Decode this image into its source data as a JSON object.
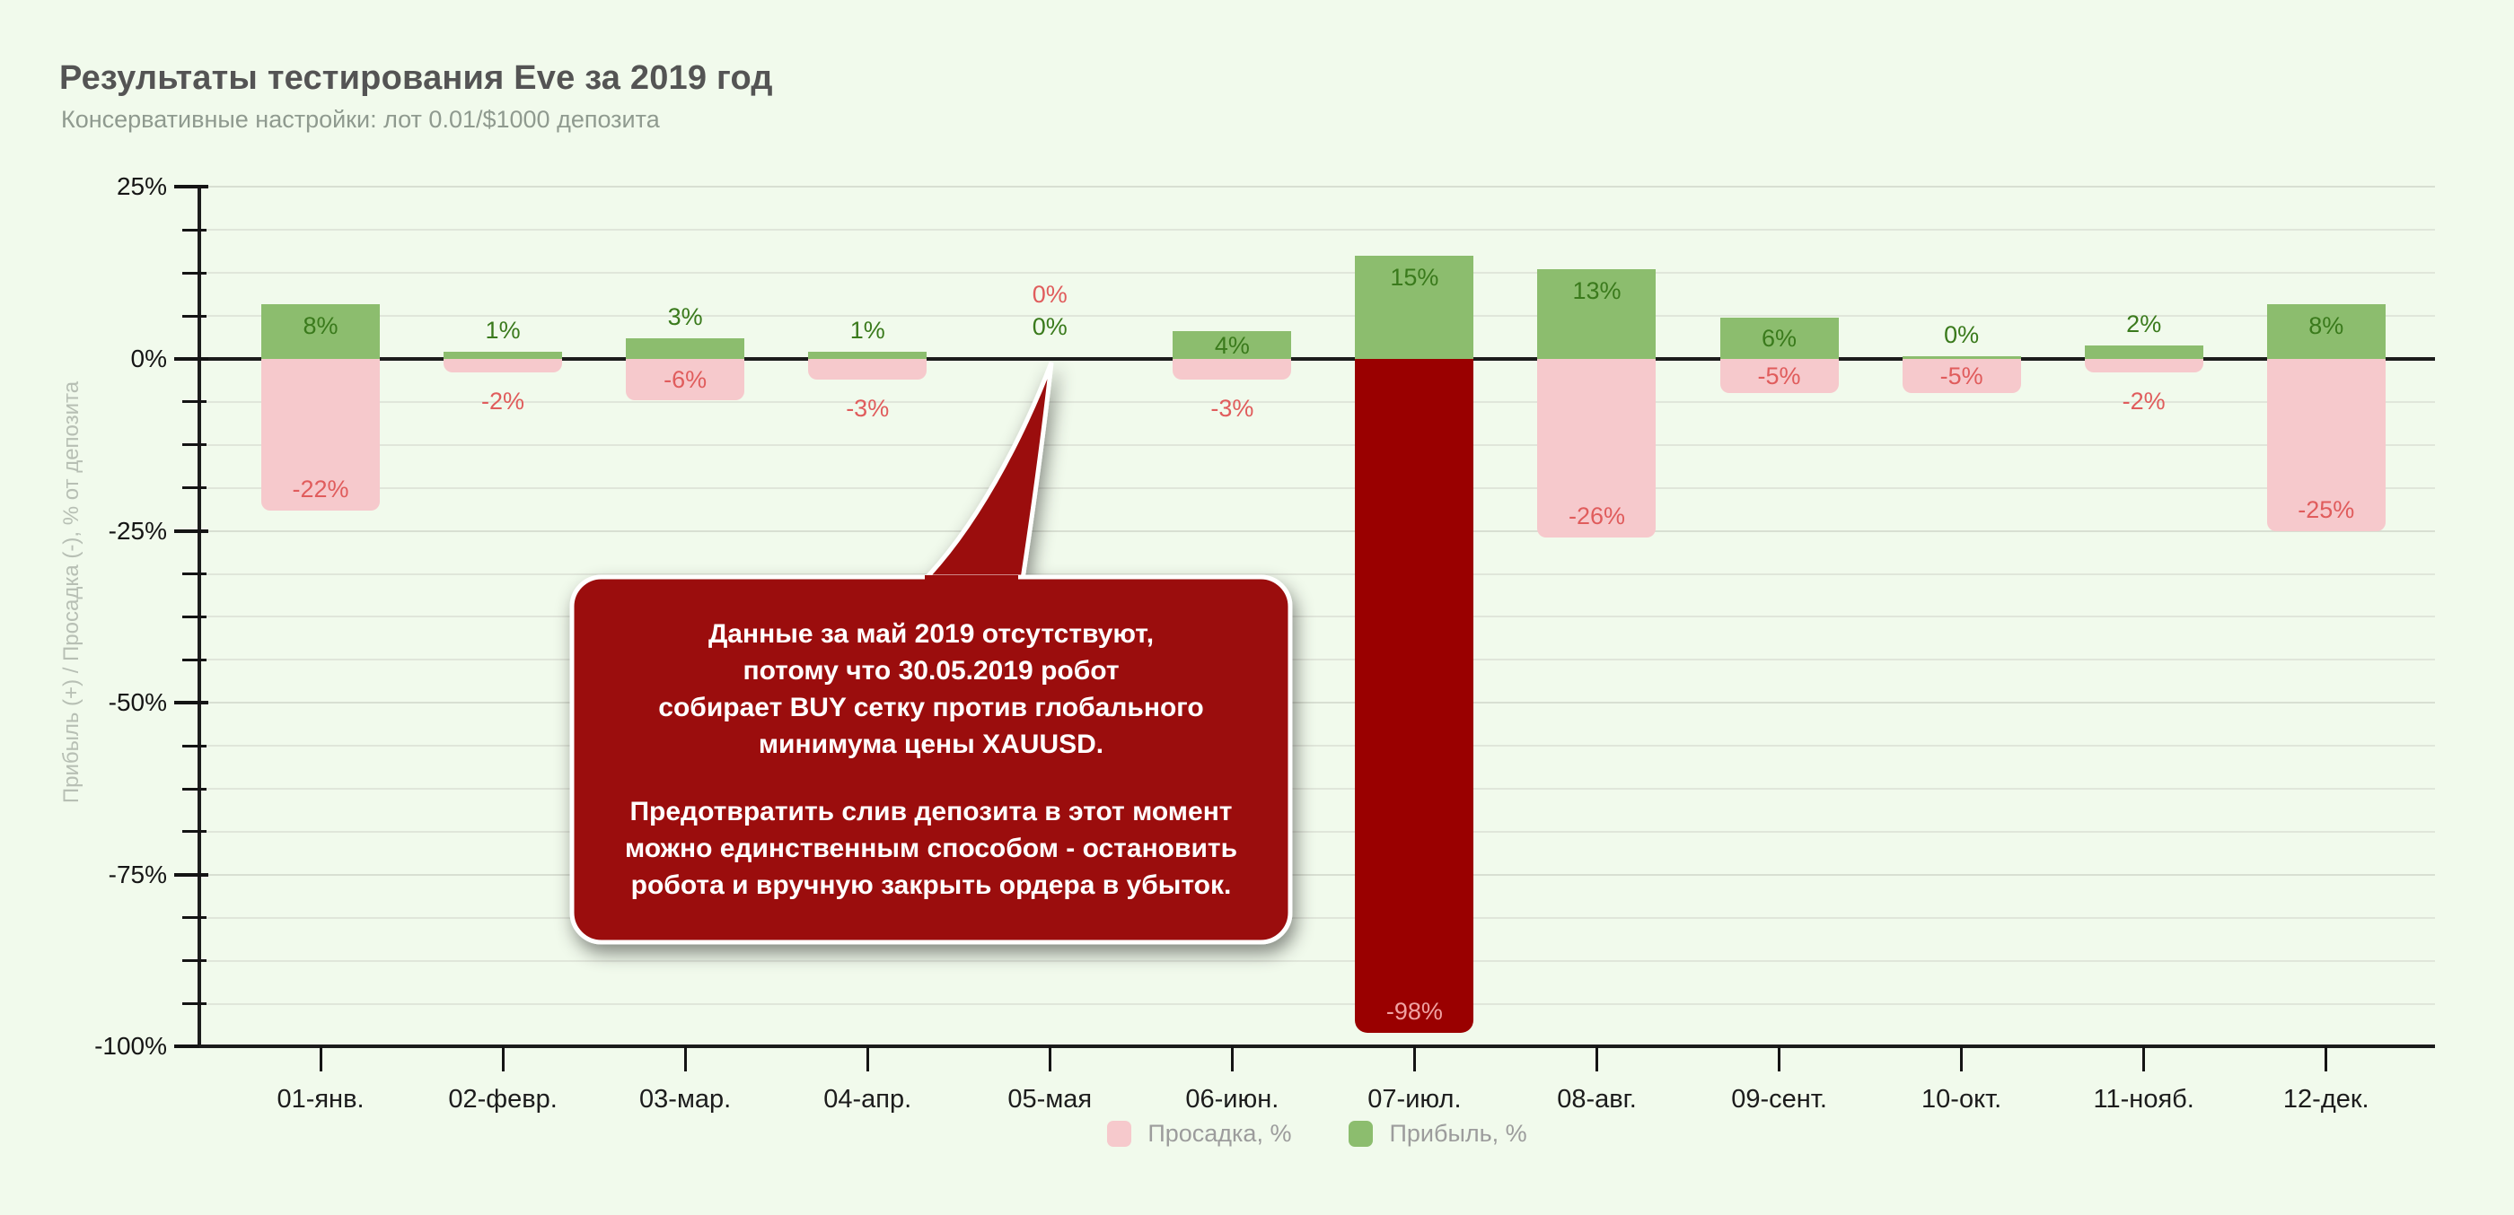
{
  "header": {
    "title": "Результаты тестирования Eve за 2019 год",
    "subtitle": "Консервативные настройки: лот 0.01/$1000 депозита"
  },
  "chart_data": {
    "type": "bar",
    "title": "Результаты тестирования Eve за 2019 год",
    "subtitle": "Консервативные настройки: лот 0.01/$1000 депозита",
    "categories": [
      "01-янв.",
      "02-февр.",
      "03-мар.",
      "04-апр.",
      "05-мая",
      "06-июн.",
      "07-июл.",
      "08-авг.",
      "09-сент.",
      "10-окт.",
      "11-нояб.",
      "12-дек."
    ],
    "series": [
      {
        "name": "Прибыль, %",
        "values": [
          8,
          1,
          3,
          1,
          0,
          4,
          15,
          13,
          6,
          0,
          2,
          8
        ]
      },
      {
        "name": "Просадка, %",
        "values": [
          -22,
          -2,
          -6,
          -3,
          0,
          -3,
          -98,
          -26,
          -5,
          -5,
          -2,
          -25
        ]
      }
    ],
    "xlabel": "",
    "ylabel": "Прибыль (+) / Просадка (-), % от депозита",
    "ylim": [
      -100,
      25
    ],
    "ytick_major_step": 25,
    "ytick_minor_step": 6.25,
    "grid": true,
    "legend_position": "bottom"
  },
  "yticks": [
    {
      "value": 25,
      "label": "25%"
    },
    {
      "value": 0,
      "label": "0%"
    },
    {
      "value": -25,
      "label": "-25%"
    },
    {
      "value": -50,
      "label": "-50%"
    },
    {
      "value": -75,
      "label": "-75%"
    },
    {
      "value": -100,
      "label": "-100%"
    }
  ],
  "months": [
    {
      "label": "01-янв.",
      "profit": 8,
      "drawdown": -22,
      "profit_label": "8%",
      "drawdown_label": "-22%",
      "profit_label_pos": "inside",
      "drawdown_label_pos": "inside",
      "drawdown_style": "pink",
      "zero_sliver": false
    },
    {
      "label": "02-февр.",
      "profit": 1,
      "drawdown": -2,
      "profit_label": "1%",
      "drawdown_label": "-2%",
      "profit_label_pos": "above",
      "drawdown_label_pos": "below",
      "drawdown_style": "pink",
      "zero_sliver": false
    },
    {
      "label": "03-мар.",
      "profit": 3,
      "drawdown": -6,
      "profit_label": "3%",
      "drawdown_label": "-6%",
      "profit_label_pos": "above",
      "drawdown_label_pos": "inside",
      "drawdown_style": "pink",
      "zero_sliver": false
    },
    {
      "label": "04-апр.",
      "profit": 1,
      "drawdown": -3,
      "profit_label": "1%",
      "drawdown_label": "-3%",
      "profit_label_pos": "above",
      "drawdown_label_pos": "below",
      "drawdown_style": "pink",
      "zero_sliver": false
    },
    {
      "label": "05-мая",
      "profit": 0,
      "drawdown": 0,
      "profit_label": "0%",
      "drawdown_label": "0%",
      "profit_label_pos": "may-special",
      "drawdown_label_pos": "may-special",
      "drawdown_style": "pink",
      "zero_sliver": false
    },
    {
      "label": "06-июн.",
      "profit": 4,
      "drawdown": -3,
      "profit_label": "4%",
      "drawdown_label": "-3%",
      "profit_label_pos": "inside",
      "drawdown_label_pos": "below",
      "drawdown_style": "pink",
      "zero_sliver": false
    },
    {
      "label": "07-июл.",
      "profit": 15,
      "drawdown": -98,
      "profit_label": "15%",
      "drawdown_label": "-98%",
      "profit_label_pos": "inside",
      "drawdown_label_pos": "inside",
      "drawdown_style": "dark",
      "zero_sliver": false
    },
    {
      "label": "08-авг.",
      "profit": 13,
      "drawdown": -26,
      "profit_label": "13%",
      "drawdown_label": "-26%",
      "profit_label_pos": "inside",
      "drawdown_label_pos": "inside",
      "drawdown_style": "pink",
      "zero_sliver": false
    },
    {
      "label": "09-сент.",
      "profit": 6,
      "drawdown": -5,
      "profit_label": "6%",
      "drawdown_label": "-5%",
      "profit_label_pos": "inside",
      "drawdown_label_pos": "inside",
      "drawdown_style": "pink",
      "zero_sliver": false
    },
    {
      "label": "10-окт.",
      "profit": 0,
      "drawdown": -5,
      "profit_label": "0%",
      "drawdown_label": "-5%",
      "profit_label_pos": "above",
      "drawdown_label_pos": "inside",
      "drawdown_style": "pink",
      "zero_sliver": true
    },
    {
      "label": "11-нояб.",
      "profit": 2,
      "drawdown": -2,
      "profit_label": "2%",
      "drawdown_label": "-2%",
      "profit_label_pos": "above",
      "drawdown_label_pos": "below",
      "drawdown_style": "pink",
      "zero_sliver": false
    },
    {
      "label": "12-дек.",
      "profit": 8,
      "drawdown": -25,
      "profit_label": "8%",
      "drawdown_label": "-25%",
      "profit_label_pos": "inside",
      "drawdown_label_pos": "inside",
      "drawdown_style": "pink",
      "zero_sliver": false
    }
  ],
  "legend": [
    {
      "label": "Просадка, %",
      "color": "#f6c9cc"
    },
    {
      "label": "Прибыль, %",
      "color": "#8cbd6e"
    }
  ],
  "callout": {
    "p1": "Данные за май 2019 отсутствуют,\nпотому что 30.05.2019 робот\nсобирает BUY сетку против глобального\nминимума цены XAUUSD.",
    "p2": "Предотвратить слив депозита в этот момент\nможно единственным способом - остановить\nробота и вручную закрыть ордера в убыток.",
    "fill": "#9b0d0d"
  },
  "colors": {
    "background": "#f1faec",
    "profit_bar": "#8cbd6e",
    "drawdown_bar": "#f6c9cc",
    "drawdown_dark_bar": "#9a0000",
    "profit_text": "#3a7a1c",
    "drawdown_text": "#e05c5c",
    "dark_bar_label_text": "#f0a3a3",
    "grid_major": "#d8dfd2",
    "grid_minor": "#e0e6da",
    "callout_fill": "#9b0d0d"
  }
}
